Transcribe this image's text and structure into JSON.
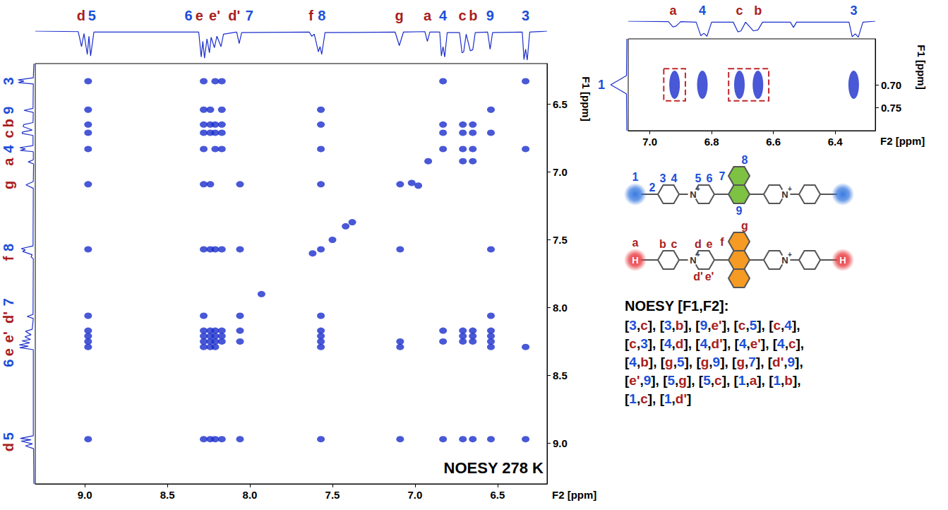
{
  "chart_data": [
    {
      "type": "scatter",
      "title": "NOESY 278 K",
      "x_label": "F2 [ppm]",
      "y_label": "F1 [ppm]",
      "xlim": [
        9.3,
        6.2
      ],
      "ylim": [
        9.3,
        6.2
      ],
      "xticks": [
        {
          "value": 9,
          "label": "9.0"
        },
        8.5,
        {
          "value": 8,
          "label": "8.0"
        },
        7.5,
        {
          "value": 7,
          "label": "7.0"
        },
        6.5
      ],
      "yticks": [
        {
          "value": 9,
          "label": "9.0"
        },
        8.5,
        {
          "value": 8,
          "label": "8.0"
        },
        7.5,
        {
          "value": 7,
          "label": "7.0"
        },
        6.5
      ],
      "color": "#1a2ecc",
      "peaks": [
        {
          "label": "d",
          "shift": 9.01
        },
        {
          "label": "5",
          "shift": 8.97
        },
        {
          "label": "6",
          "shift": 8.29
        },
        {
          "label": "e",
          "shift": 8.245
        },
        {
          "label": "e'",
          "shift": 8.215
        },
        {
          "label": "d'",
          "shift": 8.175
        },
        {
          "label": "7",
          "shift": 8.065
        },
        {
          "label": "f",
          "shift": 7.625
        },
        {
          "label": "8",
          "shift": 7.57
        },
        {
          "label": "g",
          "shift": 7.095
        },
        {
          "label": "a",
          "shift": 6.925
        },
        {
          "label": "4",
          "shift": 6.83
        },
        {
          "label": "c",
          "shift": 6.71
        },
        {
          "label": "b",
          "shift": 6.65
        },
        {
          "label": "9",
          "shift": 6.545
        },
        {
          "label": "3",
          "shift": 6.33
        }
      ],
      "projection": {
        "ylim": [
          0,
          0.6
        ],
        "points": [
          [
            9.3,
            0
          ],
          [
            9.04,
            0.01
          ],
          [
            9.02,
            0.3
          ],
          [
            9.005,
            0.05
          ],
          [
            8.985,
            0.45
          ],
          [
            8.975,
            0.1
          ],
          [
            8.965,
            0.48
          ],
          [
            8.945,
            0.02
          ],
          [
            8.31,
            0.02
          ],
          [
            8.295,
            0.5
          ],
          [
            8.285,
            0.2
          ],
          [
            8.275,
            0.52
          ],
          [
            8.26,
            0.15
          ],
          [
            8.245,
            0.42
          ],
          [
            8.235,
            0.12
          ],
          [
            8.215,
            0.32
          ],
          [
            8.2,
            0.1
          ],
          [
            8.175,
            0.3
          ],
          [
            8.16,
            0.06
          ],
          [
            8.08,
            0.02
          ],
          [
            8.065,
            0.24
          ],
          [
            8.05,
            0.03
          ],
          [
            7.64,
            0.02
          ],
          [
            7.625,
            0.1
          ],
          [
            7.61,
            0.06
          ],
          [
            7.585,
            0.4
          ],
          [
            7.575,
            0.3
          ],
          [
            7.565,
            0.45
          ],
          [
            7.545,
            0.03
          ],
          [
            7.12,
            0.02
          ],
          [
            7.095,
            0.28
          ],
          [
            7.07,
            0.02
          ],
          [
            6.94,
            0.01
          ],
          [
            6.925,
            0.2
          ],
          [
            6.91,
            0.02
          ],
          [
            6.85,
            0.02
          ],
          [
            6.84,
            0.48
          ],
          [
            6.83,
            0.3
          ],
          [
            6.82,
            0.5
          ],
          [
            6.805,
            0.03
          ],
          [
            6.73,
            0.03
          ],
          [
            6.715,
            0.42
          ],
          [
            6.705,
            0.4
          ],
          [
            6.69,
            0.06
          ],
          [
            6.665,
            0.38
          ],
          [
            6.65,
            0.36
          ],
          [
            6.635,
            0.03
          ],
          [
            6.56,
            0.02
          ],
          [
            6.545,
            0.35
          ],
          [
            6.53,
            0.03
          ],
          [
            6.35,
            0.02
          ],
          [
            6.34,
            0.55
          ],
          [
            6.33,
            0.35
          ],
          [
            6.32,
            0.56
          ],
          [
            6.305,
            0.02
          ],
          [
            6.2,
            0
          ]
        ]
      },
      "cross_peaks": [
        [
          8.98,
          6.33
        ],
        [
          8.28,
          6.33
        ],
        [
          8.21,
          6.33
        ],
        [
          8.17,
          6.33
        ],
        [
          6.83,
          6.33
        ],
        [
          6.33,
          6.33
        ],
        [
          8.98,
          6.54
        ],
        [
          8.28,
          6.54
        ],
        [
          8.24,
          6.54
        ],
        [
          8.17,
          6.54
        ],
        [
          7.57,
          6.54
        ],
        [
          6.54,
          6.54
        ],
        [
          8.98,
          6.65
        ],
        [
          8.28,
          6.65
        ],
        [
          8.24,
          6.65
        ],
        [
          8.21,
          6.65
        ],
        [
          8.17,
          6.65
        ],
        [
          7.57,
          6.65
        ],
        [
          6.83,
          6.65
        ],
        [
          6.71,
          6.65
        ],
        [
          6.65,
          6.65
        ],
        [
          8.98,
          6.71
        ],
        [
          8.28,
          6.71
        ],
        [
          8.24,
          6.71
        ],
        [
          8.21,
          6.71
        ],
        [
          8.17,
          6.71
        ],
        [
          6.83,
          6.71
        ],
        [
          6.71,
          6.71
        ],
        [
          6.65,
          6.71
        ],
        [
          6.54,
          6.71
        ],
        [
          8.98,
          6.83
        ],
        [
          8.28,
          6.83
        ],
        [
          8.21,
          6.83
        ],
        [
          8.17,
          6.83
        ],
        [
          7.57,
          6.83
        ],
        [
          6.83,
          6.83
        ],
        [
          6.71,
          6.83
        ],
        [
          6.65,
          6.83
        ],
        [
          6.33,
          6.83
        ],
        [
          6.92,
          6.92
        ],
        [
          6.71,
          6.92
        ],
        [
          6.65,
          6.92
        ],
        [
          8.98,
          7.09
        ],
        [
          8.28,
          7.09
        ],
        [
          8.24,
          7.09
        ],
        [
          8.06,
          7.09
        ],
        [
          7.57,
          7.09
        ],
        [
          7.09,
          7.09
        ],
        [
          7.02,
          7.08
        ],
        [
          6.98,
          7.1
        ],
        [
          7.42,
          7.4
        ],
        [
          7.38,
          7.37
        ],
        [
          7.5,
          7.5
        ],
        [
          7.93,
          7.9
        ],
        [
          8.98,
          7.57
        ],
        [
          8.28,
          7.57
        ],
        [
          8.24,
          7.57
        ],
        [
          8.21,
          7.57
        ],
        [
          8.17,
          7.57
        ],
        [
          8.06,
          7.57
        ],
        [
          7.57,
          7.57
        ],
        [
          7.62,
          7.6
        ],
        [
          7.09,
          7.57
        ],
        [
          6.54,
          7.57
        ],
        [
          8.98,
          8.06
        ],
        [
          8.28,
          8.06
        ],
        [
          8.06,
          8.06
        ],
        [
          7.57,
          8.06
        ],
        [
          6.54,
          8.06
        ],
        [
          8.98,
          8.17
        ],
        [
          8.28,
          8.17
        ],
        [
          8.24,
          8.17
        ],
        [
          8.21,
          8.17
        ],
        [
          8.17,
          8.17
        ],
        [
          8.06,
          8.17
        ],
        [
          7.57,
          8.17
        ],
        [
          6.83,
          8.17
        ],
        [
          6.71,
          8.17
        ],
        [
          6.65,
          8.17
        ],
        [
          6.54,
          8.17
        ],
        [
          8.98,
          8.21
        ],
        [
          8.28,
          8.21
        ],
        [
          8.24,
          8.21
        ],
        [
          8.21,
          8.21
        ],
        [
          8.17,
          8.21
        ],
        [
          7.57,
          8.21
        ],
        [
          6.71,
          8.21
        ],
        [
          6.65,
          8.21
        ],
        [
          6.54,
          8.21
        ],
        [
          8.98,
          8.25
        ],
        [
          8.28,
          8.25
        ],
        [
          8.24,
          8.25
        ],
        [
          8.21,
          8.25
        ],
        [
          8.17,
          8.25
        ],
        [
          8.06,
          8.25
        ],
        [
          7.57,
          8.25
        ],
        [
          7.09,
          8.25
        ],
        [
          6.83,
          8.25
        ],
        [
          6.71,
          8.25
        ],
        [
          6.65,
          8.25
        ],
        [
          6.54,
          8.25
        ],
        [
          8.98,
          8.29
        ],
        [
          8.28,
          8.29
        ],
        [
          8.24,
          8.29
        ],
        [
          8.21,
          8.29
        ],
        [
          7.57,
          8.29
        ],
        [
          7.09,
          8.29
        ],
        [
          6.54,
          8.29
        ],
        [
          6.33,
          8.29
        ],
        [
          8.98,
          8.97
        ],
        [
          8.28,
          8.97
        ],
        [
          8.24,
          8.97
        ],
        [
          8.21,
          8.97
        ],
        [
          8.17,
          8.97
        ],
        [
          8.06,
          8.97
        ],
        [
          7.57,
          8.97
        ],
        [
          7.09,
          8.97
        ],
        [
          6.83,
          8.97
        ],
        [
          6.71,
          8.97
        ],
        [
          6.65,
          8.97
        ],
        [
          6.54,
          8.97
        ],
        [
          6.33,
          8.97
        ]
      ]
    },
    {
      "type": "scatter",
      "x_label": "F2 [ppm]",
      "y_label": "F1 [ppm]",
      "xlim": [
        7.07,
        6.27
      ],
      "ylim": [
        0.8,
        0.6
      ],
      "xticks": [
        {
          "value": 7,
          "label": "7.0"
        },
        6.8,
        6.6,
        6.4
      ],
      "yticks": [
        {
          "value": 0.7,
          "label": "0.70"
        },
        0.75
      ],
      "color": "#1a2ecc",
      "peaks": [
        {
          "label": "a",
          "shift": 6.925
        },
        {
          "label": "4",
          "shift": 6.83
        },
        {
          "label": "c",
          "shift": 6.71
        },
        {
          "label": "b",
          "shift": 6.65
        },
        {
          "label": "3",
          "shift": 6.34
        }
      ],
      "side_peaks": [
        {
          "label": "1",
          "shift": 0.7
        }
      ],
      "projection": {
        "ylim": [
          0,
          0.35
        ],
        "points": [
          [
            7.07,
            0
          ],
          [
            6.94,
            0.01
          ],
          [
            6.925,
            0.12
          ],
          [
            6.915,
            0.1
          ],
          [
            6.9,
            0.01
          ],
          [
            6.85,
            0.02
          ],
          [
            6.835,
            0.3
          ],
          [
            6.825,
            0.25
          ],
          [
            6.815,
            0.31
          ],
          [
            6.8,
            0.02
          ],
          [
            6.73,
            0.02
          ],
          [
            6.715,
            0.22
          ],
          [
            6.705,
            0.2
          ],
          [
            6.69,
            0.02
          ],
          [
            6.665,
            0.2
          ],
          [
            6.65,
            0.18
          ],
          [
            6.635,
            0.02
          ],
          [
            6.545,
            0.02
          ],
          [
            6.535,
            0.13
          ],
          [
            6.525,
            0.02
          ],
          [
            6.355,
            0.02
          ],
          [
            6.345,
            0.32
          ],
          [
            6.335,
            0.26
          ],
          [
            6.325,
            0.33
          ],
          [
            6.31,
            0.02
          ],
          [
            6.27,
            0
          ]
        ]
      },
      "side_projection": {
        "ylim": [
          0,
          1.05
        ],
        "points": [
          [
            0.6,
            0
          ],
          [
            0.68,
            0.02
          ],
          [
            0.69,
            0.5
          ],
          [
            0.7,
            1
          ],
          [
            0.71,
            0.5
          ],
          [
            0.72,
            0.02
          ],
          [
            0.8,
            0
          ]
        ]
      },
      "cross_peaks": [
        [
          6.92,
          0.7
        ],
        [
          6.83,
          0.7
        ],
        [
          6.71,
          0.7
        ],
        [
          6.65,
          0.7
        ],
        [
          6.34,
          0.7
        ]
      ],
      "highlight_boxes": [
        {
          "x": [
            6.955,
            6.885
          ],
          "y": [
            0.665,
            0.735
          ]
        },
        {
          "x": [
            6.745,
            6.615
          ],
          "y": [
            0.665,
            0.735
          ]
        }
      ],
      "highlight_color": "#c0282d"
    }
  ],
  "structures": [
    {
      "labels": [
        "1",
        "2",
        "3",
        "4",
        "5",
        "6",
        "7",
        "8",
        "9"
      ],
      "label_color": "#1c4fd8",
      "center_color": "#7dc243",
      "end_color": "#3a7be0",
      "center_rings": 2,
      "ring_atom": "N",
      "charge": "+"
    },
    {
      "labels": [
        "a",
        "b",
        "c",
        "d",
        "e",
        "f",
        "g",
        "d'",
        "e'"
      ],
      "label_color": "#a81e1e",
      "center_color": "#f59a23",
      "end_color": "#e8383d",
      "center_rings": 3,
      "ring_atom": "N",
      "charge": "+",
      "end_atom": "H"
    }
  ],
  "noesy_list": {
    "title": "NOESY [F1,F2]:",
    "open": "[",
    "close": "]",
    "separator": ",",
    "pairs": [
      [
        "3",
        "c"
      ],
      [
        "3",
        "b"
      ],
      [
        "9",
        "e'"
      ],
      [
        "c",
        "5"
      ],
      [
        "c",
        "4"
      ],
      [
        "c",
        "3"
      ],
      [
        "4",
        "d"
      ],
      [
        "4",
        "d'"
      ],
      [
        "4",
        "e'"
      ],
      [
        "4",
        "c"
      ],
      [
        "4",
        "b"
      ],
      [
        "g",
        "5"
      ],
      [
        "g",
        "9"
      ],
      [
        "g",
        "7"
      ],
      [
        "d'",
        "9"
      ],
      [
        "e'",
        "9"
      ],
      [
        "5",
        "g"
      ],
      [
        "5",
        "c"
      ],
      [
        "1",
        "a"
      ],
      [
        "1",
        "b"
      ],
      [
        "1",
        "c"
      ],
      [
        "1",
        "d'"
      ]
    ]
  }
}
